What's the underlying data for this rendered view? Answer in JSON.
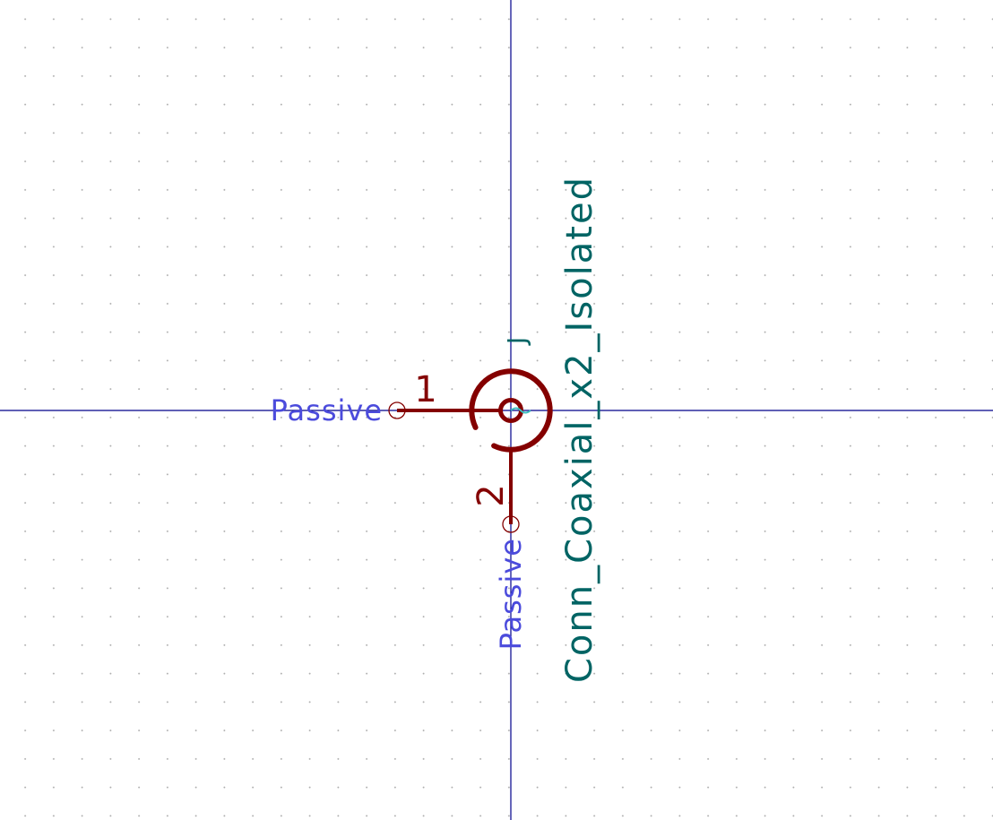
{
  "colors": {
    "background": "#ffffff",
    "axis": "#00008b",
    "body": "#840000",
    "pin_type": "#4b4bdc",
    "value": "#006464",
    "grid_dot": "#a8a8a8"
  },
  "symbol": {
    "reference": "J",
    "value": "Conn_Coaxial_x2_Isolated"
  },
  "pins": [
    {
      "number": "1",
      "type": "Passive"
    },
    {
      "number": "2",
      "type": "Passive"
    }
  ]
}
